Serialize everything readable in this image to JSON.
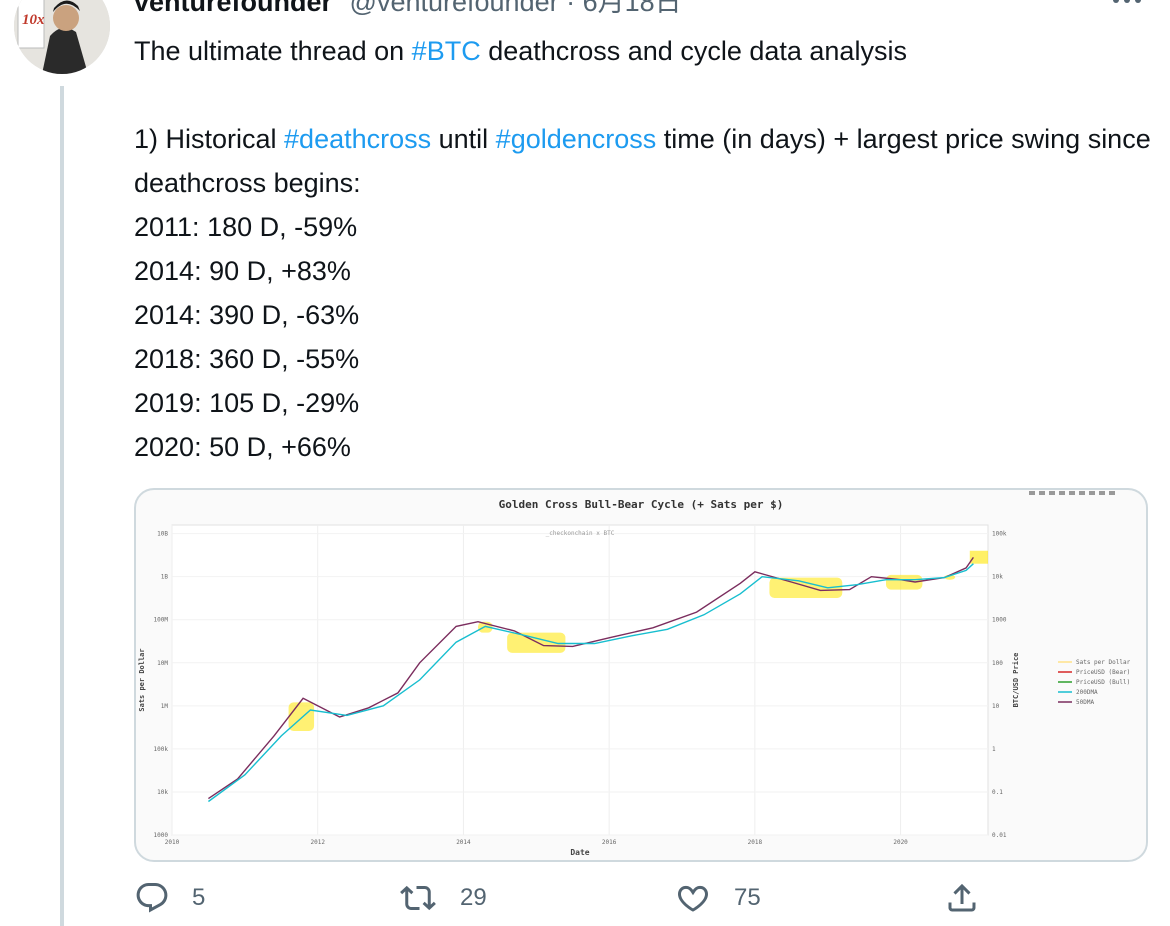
{
  "tweet": {
    "author_name": "venturefounder",
    "author_handle": "@venturefounder",
    "separator": "·",
    "date": "6月18日",
    "line1_pre": "The ultimate thread on ",
    "line1_tag": "#BTC",
    "line1_post": " deathcross and cycle data analysis",
    "line2_pre": "1) Historical ",
    "line2_tag1": "#deathcross",
    "line2_mid": " until ",
    "line2_tag2": "#goldencross",
    "line2_post": " time (in days) + largest price swing since deathcross begins:",
    "rows": [
      "2011: 180 D, -59%",
      "2014: 90 D, +83%",
      "2014: 390 D, -63%",
      "2018: 360 D, -55%",
      "2019: 105 D, -29%",
      "2020: 50 D, +66%"
    ]
  },
  "media": {
    "avatar_badge": "10x",
    "chart_data": {
      "type": "line",
      "title": "Golden Cross Bull-Bear Cycle (+ Sats per $)",
      "subtitle": "_checkonchain x BTC",
      "xlabel": "Date",
      "ylabel_left": "Sats per Dollar",
      "ylabel_right": "BTC/USD Price",
      "x_ticks": [
        "2010",
        "2012",
        "2014",
        "2016",
        "2018",
        "2020"
      ],
      "y_left_ticks": [
        "10B",
        "1B",
        "100M",
        "10M",
        "1M",
        "100k",
        "10k",
        "1000"
      ],
      "y_right_ticks": [
        "100k",
        "10k",
        "1000",
        "100",
        "10",
        "1",
        "0.1",
        "0.01"
      ],
      "legend": [
        "Sats per Dollar",
        "PriceUSD (Bear)",
        "PriceUSD (Bull)",
        "200DMA",
        "50DMA"
      ],
      "legend_placement": "right",
      "colors": {
        "bear": "#d62728",
        "bull": "#2ca02c",
        "dma200": "#17becf",
        "dma50": "#7b2d5e",
        "highlight": "#ffe600"
      },
      "series": [
        {
          "name": "50DMA",
          "x": [
            2010.5,
            2010.9,
            2011.4,
            2011.8,
            2012.3,
            2012.7,
            2013.1,
            2013.4,
            2013.9,
            2014.2,
            2014.7,
            2015.1,
            2015.5,
            2016.0,
            2016.6,
            2017.2,
            2017.8,
            2018.0,
            2018.5,
            2018.9,
            2019.3,
            2019.6,
            2020.0,
            2020.2,
            2020.6,
            2020.9,
            2021.0
          ],
          "values": [
            0.07,
            0.2,
            2,
            15,
            5.5,
            9,
            20,
            100,
            700,
            900,
            550,
            250,
            240,
            380,
            650,
            1500,
            7000,
            13000,
            7500,
            4800,
            5000,
            10000,
            8500,
            7500,
            9500,
            16000,
            28000
          ]
        },
        {
          "name": "200DMA",
          "x": [
            2010.5,
            2011.0,
            2011.5,
            2011.9,
            2012.4,
            2012.9,
            2013.4,
            2013.9,
            2014.3,
            2014.8,
            2015.3,
            2015.8,
            2016.3,
            2016.8,
            2017.3,
            2017.8,
            2018.1,
            2018.6,
            2019.0,
            2019.4,
            2019.8,
            2020.2,
            2020.6,
            2020.9,
            2021.0
          ],
          "values": [
            0.06,
            0.25,
            2,
            8,
            6,
            10,
            40,
            300,
            700,
            450,
            280,
            280,
            420,
            600,
            1300,
            4000,
            10000,
            8000,
            5500,
            6500,
            8500,
            8500,
            9500,
            14000,
            20000
          ]
        }
      ]
    }
  },
  "actions": {
    "reply_count": "5",
    "retweet_count": "29",
    "like_count": "75"
  }
}
